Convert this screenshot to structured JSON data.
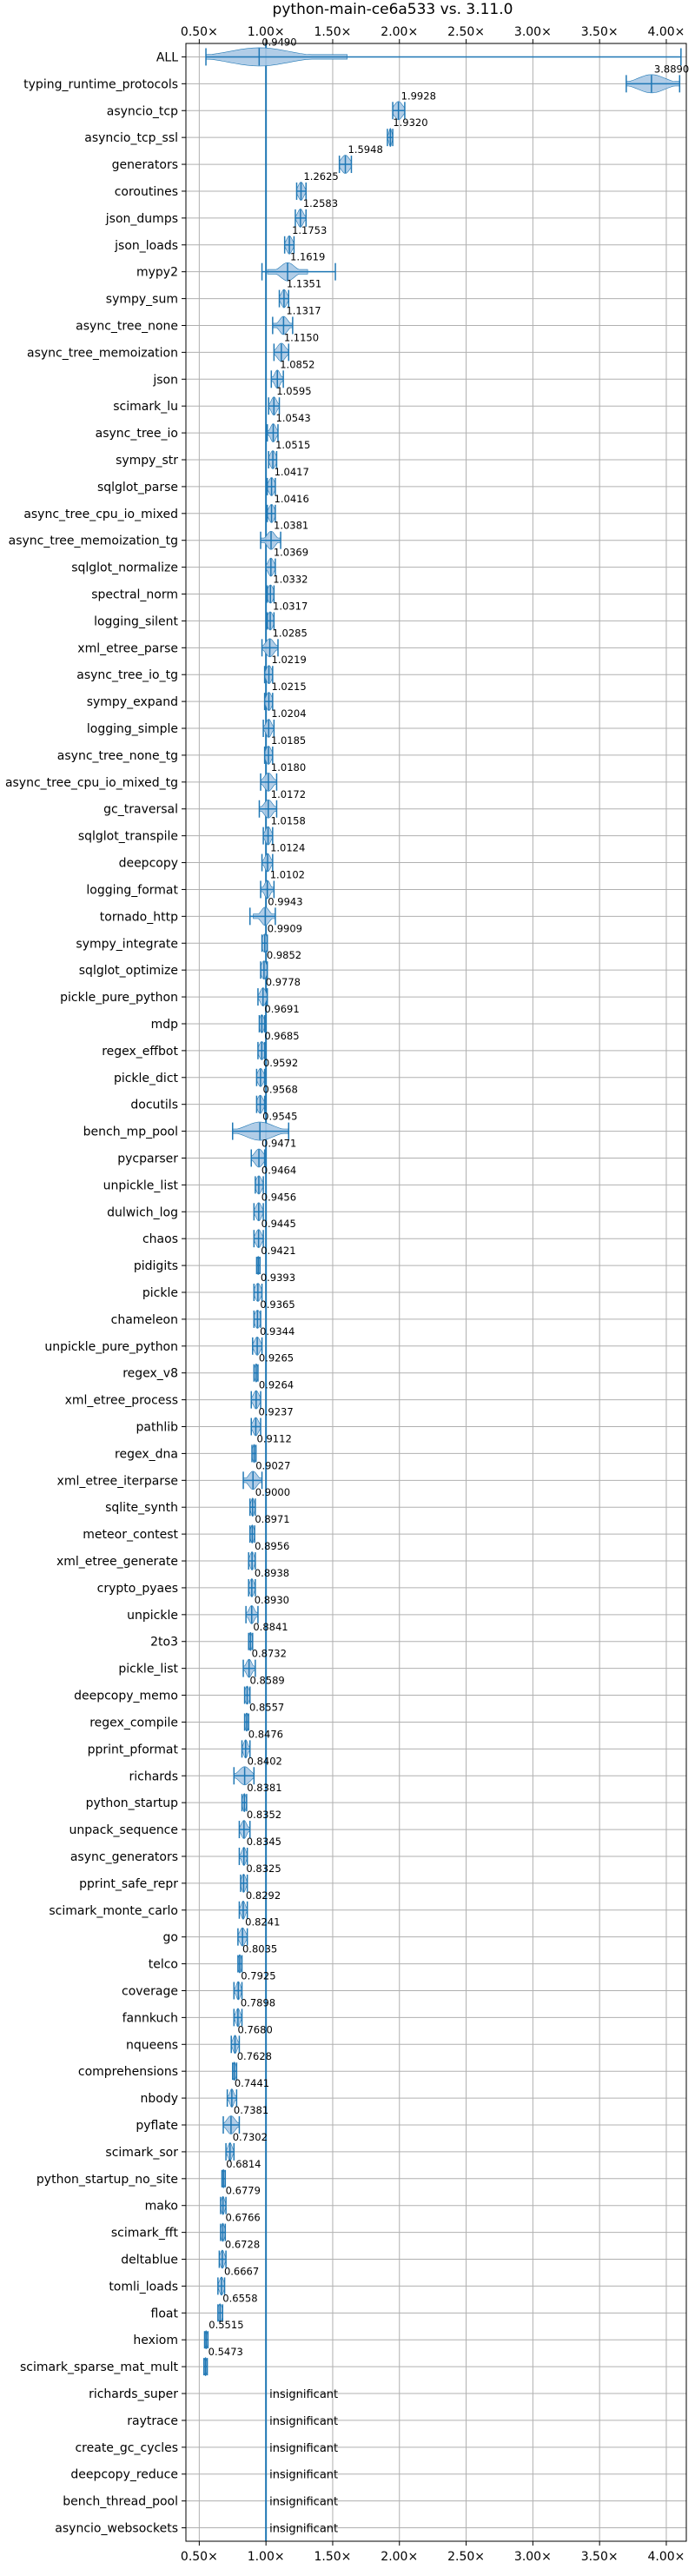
{
  "chart_data": {
    "type": "violin",
    "title": "python-main-ce6a533 vs. 3.11.0",
    "xlabel": "",
    "ylabel": "",
    "xlim": [
      0.4,
      4.15
    ],
    "x_ticks": [
      0.5,
      1.0,
      1.5,
      2.0,
      2.5,
      3.0,
      3.5,
      4.0
    ],
    "x_tick_labels": [
      "0.50×",
      "1.00×",
      "1.50×",
      "2.00×",
      "2.50×",
      "3.00×",
      "3.50×",
      "4.00×"
    ],
    "reference_line": 1.0,
    "grid": true,
    "colors": {
      "violin": "#1f77b4",
      "violin_fill": "#a9c8e4",
      "grid": "#b0b0b0"
    },
    "insignificant_label": "insignificant",
    "benchmarks": [
      {
        "name": "ALL",
        "value": 0.949,
        "label": "0.9490",
        "min": 0.55,
        "max": 4.11,
        "spread": 0.22
      },
      {
        "name": "typing_runtime_protocols",
        "value": 3.889,
        "label": "3.8890",
        "min": 3.7,
        "max": 4.1,
        "spread": 0.1
      },
      {
        "name": "asyncio_tcp",
        "value": 1.9928,
        "label": "1.9928",
        "min": 1.95,
        "max": 2.04,
        "spread": 0.03
      },
      {
        "name": "asyncio_tcp_ssl",
        "value": 1.932,
        "label": "1.9320",
        "min": 1.91,
        "max": 1.95,
        "spread": 0.01
      },
      {
        "name": "generators",
        "value": 1.5948,
        "label": "1.5948",
        "min": 1.55,
        "max": 1.64,
        "spread": 0.03
      },
      {
        "name": "coroutines",
        "value": 1.2625,
        "label": "1.2625",
        "min": 1.23,
        "max": 1.3,
        "spread": 0.02
      },
      {
        "name": "json_dumps",
        "value": 1.2583,
        "label": "1.2583",
        "min": 1.22,
        "max": 1.3,
        "spread": 0.02
      },
      {
        "name": "json_loads",
        "value": 1.1753,
        "label": "1.1753",
        "min": 1.14,
        "max": 1.21,
        "spread": 0.02
      },
      {
        "name": "mypy2",
        "value": 1.1619,
        "label": "1.1619",
        "min": 0.97,
        "max": 1.52,
        "spread": 0.05
      },
      {
        "name": "sympy_sum",
        "value": 1.1351,
        "label": "1.1351",
        "min": 1.1,
        "max": 1.17,
        "spread": 0.02
      },
      {
        "name": "async_tree_none",
        "value": 1.1317,
        "label": "1.1317",
        "min": 1.05,
        "max": 1.2,
        "spread": 0.03
      },
      {
        "name": "async_tree_memoization",
        "value": 1.115,
        "label": "1.1150",
        "min": 1.06,
        "max": 1.17,
        "spread": 0.03
      },
      {
        "name": "json",
        "value": 1.0852,
        "label": "1.0852",
        "min": 1.04,
        "max": 1.13,
        "spread": 0.02
      },
      {
        "name": "scimark_lu",
        "value": 1.0595,
        "label": "1.0595",
        "min": 1.02,
        "max": 1.1,
        "spread": 0.02
      },
      {
        "name": "async_tree_io",
        "value": 1.0543,
        "label": "1.0543",
        "min": 1.01,
        "max": 1.09,
        "spread": 0.02
      },
      {
        "name": "sympy_str",
        "value": 1.0515,
        "label": "1.0515",
        "min": 1.02,
        "max": 1.08,
        "spread": 0.02
      },
      {
        "name": "sqlglot_parse",
        "value": 1.0417,
        "label": "1.0417",
        "min": 1.01,
        "max": 1.07,
        "spread": 0.02
      },
      {
        "name": "async_tree_cpu_io_mixed",
        "value": 1.0416,
        "label": "1.0416",
        "min": 1.01,
        "max": 1.07,
        "spread": 0.02
      },
      {
        "name": "async_tree_memoization_tg",
        "value": 1.0381,
        "label": "1.0381",
        "min": 0.96,
        "max": 1.11,
        "spread": 0.03
      },
      {
        "name": "sqlglot_normalize",
        "value": 1.0369,
        "label": "1.0369",
        "min": 1.0,
        "max": 1.07,
        "spread": 0.02
      },
      {
        "name": "spectral_norm",
        "value": 1.0332,
        "label": "1.0332",
        "min": 1.01,
        "max": 1.06,
        "spread": 0.02
      },
      {
        "name": "logging_silent",
        "value": 1.0317,
        "label": "1.0317",
        "min": 1.01,
        "max": 1.06,
        "spread": 0.02
      },
      {
        "name": "xml_etree_parse",
        "value": 1.0285,
        "label": "1.0285",
        "min": 0.97,
        "max": 1.09,
        "spread": 0.03
      },
      {
        "name": "async_tree_io_tg",
        "value": 1.0219,
        "label": "1.0219",
        "min": 0.99,
        "max": 1.05,
        "spread": 0.02
      },
      {
        "name": "sympy_expand",
        "value": 1.0215,
        "label": "1.0215",
        "min": 0.99,
        "max": 1.05,
        "spread": 0.02
      },
      {
        "name": "logging_simple",
        "value": 1.0204,
        "label": "1.0204",
        "min": 0.98,
        "max": 1.06,
        "spread": 0.02
      },
      {
        "name": "async_tree_none_tg",
        "value": 1.0185,
        "label": "1.0185",
        "min": 0.99,
        "max": 1.05,
        "spread": 0.02
      },
      {
        "name": "async_tree_cpu_io_mixed_tg",
        "value": 1.018,
        "label": "1.0180",
        "min": 0.96,
        "max": 1.08,
        "spread": 0.03
      },
      {
        "name": "gc_traversal",
        "value": 1.0172,
        "label": "1.0172",
        "min": 0.95,
        "max": 1.08,
        "spread": 0.03
      },
      {
        "name": "sqlglot_transpile",
        "value": 1.0158,
        "label": "1.0158",
        "min": 0.98,
        "max": 1.05,
        "spread": 0.02
      },
      {
        "name": "deepcopy",
        "value": 1.0124,
        "label": "1.0124",
        "min": 0.97,
        "max": 1.05,
        "spread": 0.02
      },
      {
        "name": "logging_format",
        "value": 1.0102,
        "label": "1.0102",
        "min": 0.96,
        "max": 1.06,
        "spread": 0.02
      },
      {
        "name": "tornado_http",
        "value": 0.9943,
        "label": "0.9943",
        "min": 0.88,
        "max": 1.07,
        "spread": 0.03
      },
      {
        "name": "sympy_integrate",
        "value": 0.9909,
        "label": "0.9909",
        "min": 0.97,
        "max": 1.01,
        "spread": 0.02
      },
      {
        "name": "sqlglot_optimize",
        "value": 0.9852,
        "label": "0.9852",
        "min": 0.96,
        "max": 1.01,
        "spread": 0.02
      },
      {
        "name": "pickle_pure_python",
        "value": 0.9778,
        "label": "0.9778",
        "min": 0.94,
        "max": 1.01,
        "spread": 0.02
      },
      {
        "name": "mdp",
        "value": 0.9691,
        "label": "0.9691",
        "min": 0.95,
        "max": 0.99,
        "spread": 0.015
      },
      {
        "name": "regex_effbot",
        "value": 0.9685,
        "label": "0.9685",
        "min": 0.94,
        "max": 0.99,
        "spread": 0.02
      },
      {
        "name": "pickle_dict",
        "value": 0.9592,
        "label": "0.9592",
        "min": 0.93,
        "max": 0.99,
        "spread": 0.02
      },
      {
        "name": "docutils",
        "value": 0.9568,
        "label": "0.9568",
        "min": 0.93,
        "max": 0.99,
        "spread": 0.02
      },
      {
        "name": "bench_mp_pool",
        "value": 0.9545,
        "label": "0.9545",
        "min": 0.75,
        "max": 1.17,
        "spread": 0.1
      },
      {
        "name": "pycparser",
        "value": 0.9471,
        "label": "0.9471",
        "min": 0.89,
        "max": 0.99,
        "spread": 0.03
      },
      {
        "name": "unpickle_list",
        "value": 0.9464,
        "label": "0.9464",
        "min": 0.92,
        "max": 0.98,
        "spread": 0.02
      },
      {
        "name": "dulwich_log",
        "value": 0.9456,
        "label": "0.9456",
        "min": 0.91,
        "max": 0.98,
        "spread": 0.02
      },
      {
        "name": "chaos",
        "value": 0.9445,
        "label": "0.9445",
        "min": 0.91,
        "max": 0.98,
        "spread": 0.02
      },
      {
        "name": "pidigits",
        "value": 0.9421,
        "label": "0.9421",
        "min": 0.93,
        "max": 0.955,
        "spread": 0.012
      },
      {
        "name": "pickle",
        "value": 0.9393,
        "label": "0.9393",
        "min": 0.91,
        "max": 0.97,
        "spread": 0.02
      },
      {
        "name": "chameleon",
        "value": 0.9365,
        "label": "0.9365",
        "min": 0.91,
        "max": 0.96,
        "spread": 0.02
      },
      {
        "name": "unpickle_pure_python",
        "value": 0.9344,
        "label": "0.9344",
        "min": 0.9,
        "max": 0.97,
        "spread": 0.02
      },
      {
        "name": "regex_v8",
        "value": 0.9265,
        "label": "0.9265",
        "min": 0.91,
        "max": 0.94,
        "spread": 0.012
      },
      {
        "name": "xml_etree_process",
        "value": 0.9264,
        "label": "0.9264",
        "min": 0.89,
        "max": 0.96,
        "spread": 0.02
      },
      {
        "name": "pathlib",
        "value": 0.9237,
        "label": "0.9237",
        "min": 0.89,
        "max": 0.96,
        "spread": 0.02
      },
      {
        "name": "regex_dna",
        "value": 0.9112,
        "label": "0.9112",
        "min": 0.895,
        "max": 0.925,
        "spread": 0.012
      },
      {
        "name": "xml_etree_iterparse",
        "value": 0.9027,
        "label": "0.9027",
        "min": 0.83,
        "max": 0.97,
        "spread": 0.03
      },
      {
        "name": "sqlite_synth",
        "value": 0.9,
        "label": "0.9000",
        "min": 0.88,
        "max": 0.92,
        "spread": 0.012
      },
      {
        "name": "meteor_contest",
        "value": 0.8971,
        "label": "0.8971",
        "min": 0.88,
        "max": 0.915,
        "spread": 0.012
      },
      {
        "name": "xml_etree_generate",
        "value": 0.8956,
        "label": "0.8956",
        "min": 0.87,
        "max": 0.92,
        "spread": 0.015
      },
      {
        "name": "crypto_pyaes",
        "value": 0.8938,
        "label": "0.8938",
        "min": 0.87,
        "max": 0.92,
        "spread": 0.015
      },
      {
        "name": "unpickle",
        "value": 0.893,
        "label": "0.8930",
        "min": 0.85,
        "max": 0.94,
        "spread": 0.02
      },
      {
        "name": "2to3",
        "value": 0.8841,
        "label": "0.8841",
        "min": 0.87,
        "max": 0.9,
        "spread": 0.012
      },
      {
        "name": "pickle_list",
        "value": 0.8732,
        "label": "0.8732",
        "min": 0.83,
        "max": 0.92,
        "spread": 0.02
      },
      {
        "name": "deepcopy_memo",
        "value": 0.8589,
        "label": "0.8589",
        "min": 0.84,
        "max": 0.88,
        "spread": 0.015
      },
      {
        "name": "regex_compile",
        "value": 0.8557,
        "label": "0.8557",
        "min": 0.84,
        "max": 0.87,
        "spread": 0.012
      },
      {
        "name": "pprint_pformat",
        "value": 0.8476,
        "label": "0.8476",
        "min": 0.82,
        "max": 0.88,
        "spread": 0.015
      },
      {
        "name": "richards",
        "value": 0.8402,
        "label": "0.8402",
        "min": 0.76,
        "max": 0.91,
        "spread": 0.04
      },
      {
        "name": "python_startup",
        "value": 0.8381,
        "label": "0.8381",
        "min": 0.82,
        "max": 0.855,
        "spread": 0.012
      },
      {
        "name": "unpack_sequence",
        "value": 0.8352,
        "label": "0.8352",
        "min": 0.8,
        "max": 0.88,
        "spread": 0.02
      },
      {
        "name": "async_generators",
        "value": 0.8345,
        "label": "0.8345",
        "min": 0.8,
        "max": 0.86,
        "spread": 0.015
      },
      {
        "name": "pprint_safe_repr",
        "value": 0.8325,
        "label": "0.8325",
        "min": 0.81,
        "max": 0.86,
        "spread": 0.015
      },
      {
        "name": "scimark_monte_carlo",
        "value": 0.8292,
        "label": "0.8292",
        "min": 0.8,
        "max": 0.86,
        "spread": 0.015
      },
      {
        "name": "go",
        "value": 0.8241,
        "label": "0.8241",
        "min": 0.79,
        "max": 0.86,
        "spread": 0.02
      },
      {
        "name": "telco",
        "value": 0.8035,
        "label": "0.8035",
        "min": 0.79,
        "max": 0.82,
        "spread": 0.012
      },
      {
        "name": "coverage",
        "value": 0.7925,
        "label": "0.7925",
        "min": 0.76,
        "max": 0.82,
        "spread": 0.015
      },
      {
        "name": "fannkuch",
        "value": 0.7898,
        "label": "0.7898",
        "min": 0.76,
        "max": 0.82,
        "spread": 0.015
      },
      {
        "name": "nqueens",
        "value": 0.768,
        "label": "0.7680",
        "min": 0.74,
        "max": 0.8,
        "spread": 0.015
      },
      {
        "name": "comprehensions",
        "value": 0.7628,
        "label": "0.7628",
        "min": 0.75,
        "max": 0.78,
        "spread": 0.012
      },
      {
        "name": "nbody",
        "value": 0.7441,
        "label": "0.7441",
        "min": 0.71,
        "max": 0.78,
        "spread": 0.015
      },
      {
        "name": "pyflate",
        "value": 0.7381,
        "label": "0.7381",
        "min": 0.68,
        "max": 0.8,
        "spread": 0.03
      },
      {
        "name": "scimark_sor",
        "value": 0.7302,
        "label": "0.7302",
        "min": 0.7,
        "max": 0.76,
        "spread": 0.015
      },
      {
        "name": "python_startup_no_site",
        "value": 0.6814,
        "label": "0.6814",
        "min": 0.67,
        "max": 0.695,
        "spread": 0.012
      },
      {
        "name": "mako",
        "value": 0.6779,
        "label": "0.6779",
        "min": 0.66,
        "max": 0.7,
        "spread": 0.012
      },
      {
        "name": "scimark_fft",
        "value": 0.6766,
        "label": "0.6766",
        "min": 0.66,
        "max": 0.695,
        "spread": 0.012
      },
      {
        "name": "deltablue",
        "value": 0.6728,
        "label": "0.6728",
        "min": 0.65,
        "max": 0.7,
        "spread": 0.015
      },
      {
        "name": "tomli_loads",
        "value": 0.6667,
        "label": "0.6667",
        "min": 0.64,
        "max": 0.69,
        "spread": 0.015
      },
      {
        "name": "float",
        "value": 0.6558,
        "label": "0.6558",
        "min": 0.64,
        "max": 0.675,
        "spread": 0.015
      },
      {
        "name": "hexiom",
        "value": 0.5515,
        "label": "0.5515",
        "min": 0.54,
        "max": 0.565,
        "spread": 0.01
      },
      {
        "name": "scimark_sparse_mat_mult",
        "value": 0.5473,
        "label": "0.5473",
        "min": 0.535,
        "max": 0.56,
        "spread": 0.01
      },
      {
        "name": "richards_super",
        "insignificant": true
      },
      {
        "name": "raytrace",
        "insignificant": true
      },
      {
        "name": "create_gc_cycles",
        "insignificant": true
      },
      {
        "name": "deepcopy_reduce",
        "insignificant": true
      },
      {
        "name": "bench_thread_pool",
        "insignificant": true
      },
      {
        "name": "asyncio_websockets",
        "insignificant": true
      }
    ]
  }
}
